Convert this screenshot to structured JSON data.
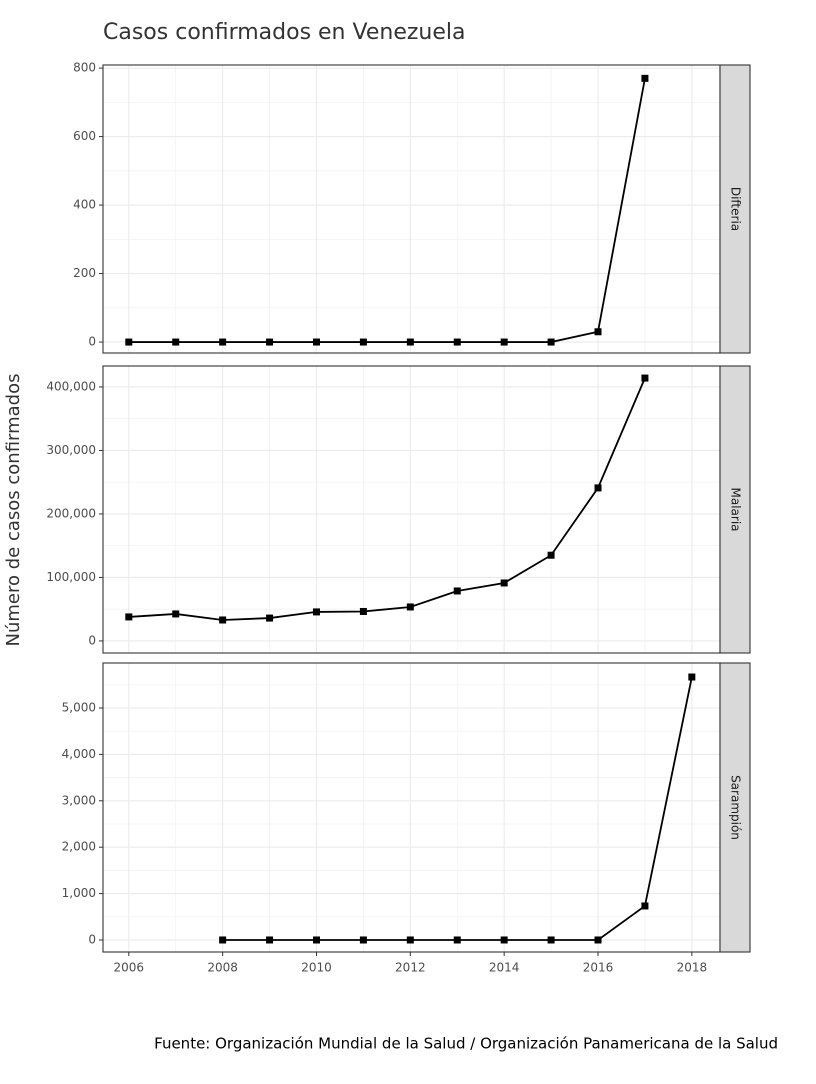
{
  "chart_data": {
    "type": "line",
    "title": "Casos confirmados en Venezuela",
    "y_label": "Número de casos confirmados",
    "caption": "Fuente: Organización Mundial de la Salud / Organización Panamericana de la Salud",
    "color": "#000000",
    "grid": true,
    "xlim": [
      2005.45,
      2018.6
    ],
    "xticks": [
      2006,
      2008,
      2010,
      2012,
      2014,
      2016,
      2018
    ],
    "panels": [
      {
        "name": "Difteria",
        "x": [
          2006,
          2007,
          2008,
          2009,
          2010,
          2011,
          2012,
          2013,
          2014,
          2015,
          2016,
          2017
        ],
        "values": [
          0,
          0,
          0,
          0,
          0,
          0,
          0,
          0,
          0,
          0,
          30,
          770
        ],
        "ylim": [
          -32,
          809
        ],
        "yticks": [
          0,
          200,
          400,
          600,
          800
        ]
      },
      {
        "name": "Malaria",
        "x": [
          2006,
          2007,
          2008,
          2009,
          2010,
          2011,
          2012,
          2013,
          2014,
          2015,
          2016,
          2017
        ],
        "values": [
          37800,
          42500,
          33000,
          36000,
          45700,
          46400,
          53500,
          78700,
          91300,
          135000,
          241000,
          414000
        ],
        "ylim": [
          -19000,
          433000
        ],
        "yticks": [
          0,
          {
            "value": 100000,
            "label": "100,000"
          },
          {
            "value": 200000,
            "label": "200,000"
          },
          {
            "value": 300000,
            "label": "300,000"
          },
          {
            "value": 400000,
            "label": "400,000"
          }
        ]
      },
      {
        "name": "Sarampión",
        "x": [
          2008,
          2009,
          2010,
          2011,
          2012,
          2013,
          2014,
          2015,
          2016,
          2017,
          2018
        ],
        "values": [
          0,
          0,
          0,
          0,
          0,
          0,
          0,
          0,
          0,
          733,
          5668
        ],
        "ylim": [
          -259,
          5970
        ],
        "yticks": [
          0,
          {
            "value": 1000,
            "label": "1,000"
          },
          {
            "value": 2000,
            "label": "2,000"
          },
          {
            "value": 3000,
            "label": "3,000"
          },
          {
            "value": 4000,
            "label": "4,000"
          },
          {
            "value": 5000,
            "label": "5,000"
          }
        ]
      }
    ]
  }
}
